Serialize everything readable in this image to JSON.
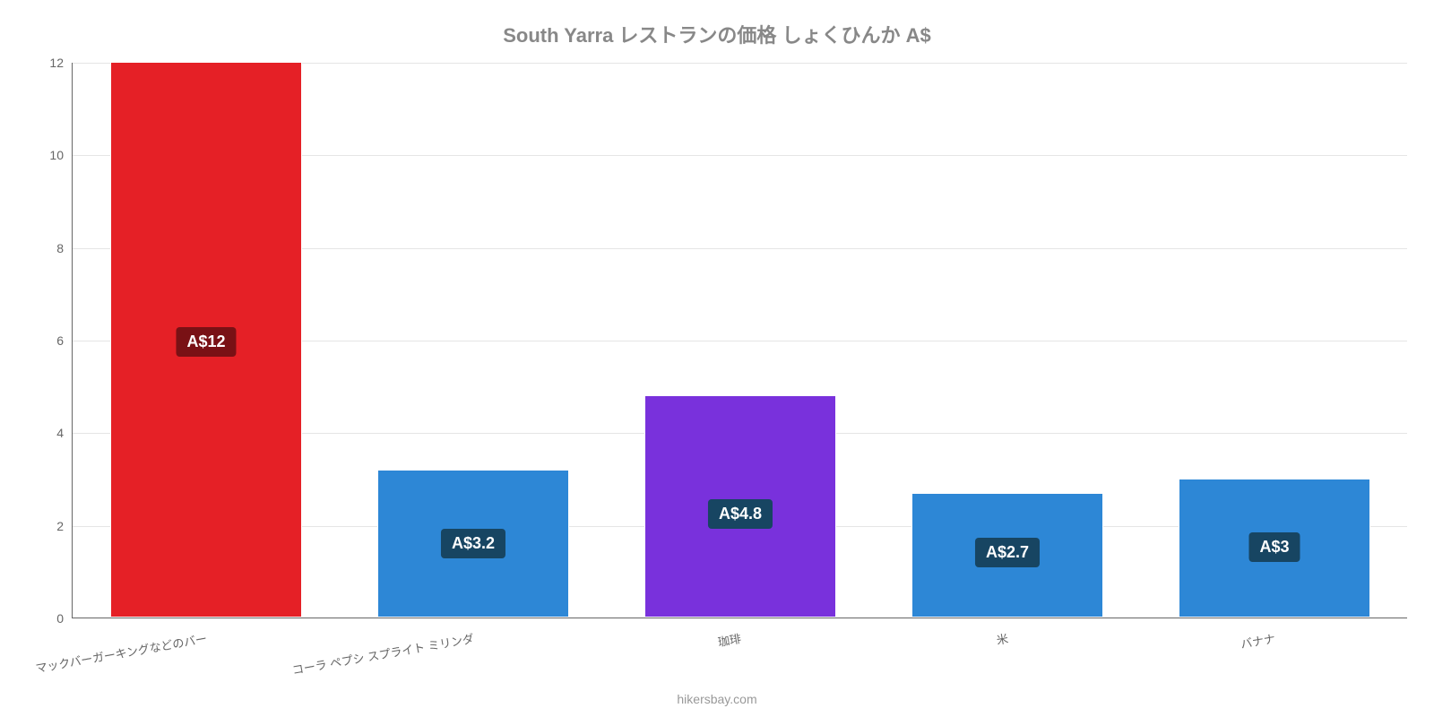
{
  "chart": {
    "type": "bar",
    "title": "South Yarra レストランの価格 しょくひんか A$",
    "title_color": "#888888",
    "title_fontsize": 22,
    "attribution": "hikersbay.com",
    "attribution_color": "#999999",
    "background_color": "#ffffff",
    "grid_color": "#e5e5e5",
    "axis_color": "#666666",
    "tick_label_color": "#666666",
    "tick_fontsize": 14,
    "x_tick_fontsize": 13,
    "x_label_rotation_deg": -10,
    "ylim": [
      0,
      12
    ],
    "ytick_step": 2,
    "bar_width_ratio": 0.72,
    "categories": [
      "マックバーガーキングなどのバー",
      "コーラ ペプシ スプライト ミリンダ",
      "珈琲",
      "米",
      "バナナ"
    ],
    "values": [
      12,
      3.2,
      4.8,
      2.7,
      3
    ],
    "value_labels": [
      "A$12",
      "A$3.2",
      "A$4.8",
      "A$2.7",
      "A$3"
    ],
    "bar_colors": [
      "#e52026",
      "#2d87d6",
      "#7931dc",
      "#2d87d6",
      "#2d87d6"
    ],
    "label_chip_colors": [
      "#791115",
      "#174562",
      "#174562",
      "#174562",
      "#174562"
    ],
    "label_chip_text_color": "#ffffff",
    "label_chip_fontsize": 18
  }
}
